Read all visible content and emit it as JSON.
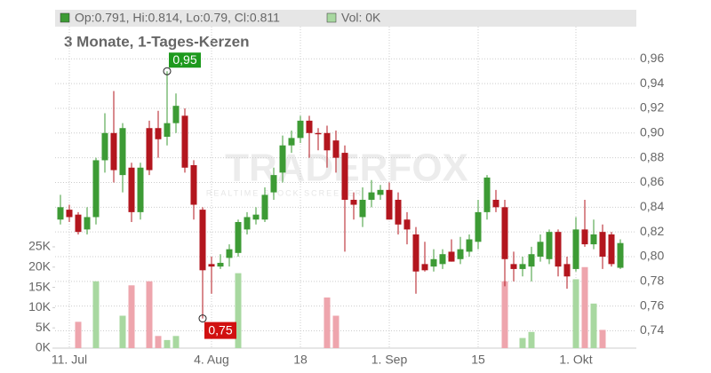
{
  "chart_data": {
    "type": "candlestick",
    "header": "Op:0.791, Hi:0.814, Lo:0.79, Cl:0.811",
    "volume_header": "Vol: 0K",
    "subtitle": "3 Monate, 1-Tages-Kerzen",
    "watermark": "TRADERFOX",
    "watermark_sub": "REALTIME STOCK SCREENER",
    "annotations": [
      "0,95",
      "0,75"
    ],
    "up_color": "#3d9b35",
    "down_color": "#b3161e",
    "volume_up_color": "#a8d8a0",
    "volume_down_color": "#eea5ad",
    "grid": true,
    "categories": [
      null,
      "11. Jul",
      null,
      null,
      null,
      null,
      null,
      null,
      null,
      null,
      null,
      null,
      null,
      null,
      null,
      null,
      null,
      "4. Aug",
      null,
      null,
      null,
      null,
      null,
      null,
      null,
      null,
      null,
      "18",
      null,
      null,
      null,
      null,
      null,
      null,
      null,
      null,
      null,
      "1. Sep",
      null,
      null,
      null,
      null,
      null,
      null,
      null,
      null,
      null,
      "15",
      null,
      null,
      null,
      null,
      null,
      null,
      null,
      null,
      null,
      null,
      "1. Okt",
      null,
      null,
      null,
      null,
      null
    ],
    "open": [
      0.83,
      0.838,
      0.834,
      0.822,
      0.832,
      0.878,
      0.9,
      0.866,
      0.872,
      0.836,
      0.904,
      0.904,
      0.897,
      0.908,
      0.914,
      0.874,
      0.838,
      0.794,
      0.792,
      0.799,
      0.803,
      0.822,
      0.83,
      0.83,
      0.852,
      0.868,
      0.89,
      0.896,
      0.91,
      0.9,
      0.9,
      0.894,
      0.884,
      0.846,
      0.832,
      0.846,
      0.85,
      0.854,
      0.846,
      0.83,
      0.818,
      0.794,
      0.792,
      0.794,
      0.804,
      0.798,
      0.804,
      0.812,
      0.836,
      0.846,
      0.84,
      0.794,
      0.79,
      0.792,
      0.8,
      0.798,
      0.82,
      0.794,
      0.79,
      0.822,
      0.81,
      0.82,
      0.818,
      0.791
    ],
    "high": [
      0.85,
      0.842,
      0.836,
      0.84,
      0.88,
      0.916,
      0.934,
      0.908,
      0.876,
      0.876,
      0.91,
      0.918,
      0.95,
      0.932,
      0.92,
      0.878,
      0.84,
      0.8,
      0.802,
      0.81,
      0.83,
      0.836,
      0.84,
      0.856,
      0.872,
      0.898,
      0.902,
      0.914,
      0.914,
      0.904,
      0.906,
      0.902,
      0.89,
      0.852,
      0.856,
      0.862,
      0.858,
      0.86,
      0.852,
      0.836,
      0.824,
      0.812,
      0.806,
      0.806,
      0.814,
      0.816,
      0.818,
      0.846,
      0.866,
      0.854,
      0.846,
      0.804,
      0.8,
      0.808,
      0.818,
      0.822,
      0.822,
      0.8,
      0.832,
      0.846,
      0.83,
      0.826,
      0.82,
      0.814
    ],
    "low": [
      0.826,
      0.828,
      0.818,
      0.818,
      0.826,
      0.868,
      0.86,
      0.852,
      0.828,
      0.83,
      0.866,
      0.88,
      0.89,
      0.9,
      0.868,
      0.83,
      0.75,
      0.77,
      0.79,
      0.792,
      0.8,
      0.818,
      0.826,
      0.828,
      0.846,
      0.86,
      0.884,
      0.892,
      0.88,
      0.886,
      0.872,
      0.868,
      0.804,
      0.83,
      0.824,
      0.84,
      0.846,
      0.83,
      0.818,
      0.81,
      0.77,
      0.788,
      0.788,
      0.79,
      0.796,
      0.794,
      0.8,
      0.806,
      0.83,
      0.836,
      0.776,
      0.78,
      0.784,
      0.78,
      0.796,
      0.794,
      0.784,
      0.774,
      0.788,
      0.808,
      0.806,
      0.79,
      0.792,
      0.79
    ],
    "close": [
      0.84,
      0.832,
      0.82,
      0.832,
      0.878,
      0.9,
      0.87,
      0.904,
      0.836,
      0.872,
      0.87,
      0.895,
      0.908,
      0.922,
      0.872,
      0.842,
      0.789,
      0.792,
      0.795,
      0.806,
      0.828,
      0.832,
      0.834,
      0.85,
      0.866,
      0.89,
      0.896,
      0.91,
      0.9,
      0.899,
      0.886,
      0.88,
      0.846,
      0.842,
      0.846,
      0.852,
      0.854,
      0.83,
      0.826,
      0.822,
      0.788,
      0.789,
      0.798,
      0.802,
      0.796,
      0.806,
      0.814,
      0.836,
      0.864,
      0.84,
      0.798,
      0.79,
      0.794,
      0.802,
      0.812,
      0.82,
      0.792,
      0.784,
      0.822,
      0.81,
      0.818,
      0.8,
      0.794,
      0.811
    ],
    "volume": [
      0,
      0,
      6500,
      0,
      16500,
      0,
      0,
      8000,
      15500,
      0,
      16500,
      3000,
      2000,
      3000,
      0,
      0,
      0,
      0,
      0,
      0,
      18500,
      0,
      0,
      0,
      0,
      0,
      0,
      0,
      0,
      0,
      12500,
      8000,
      0,
      0,
      0,
      0,
      0,
      0,
      0,
      0,
      0,
      0,
      0,
      0,
      0,
      0,
      0,
      0,
      0,
      0,
      16500,
      0,
      2500,
      4000,
      0,
      0,
      0,
      0,
      17000,
      20000,
      11000,
      4500,
      0,
      0
    ],
    "ylim": [
      0.726,
      0.999
    ],
    "yticks": [
      {
        "value": 0.74,
        "label": "0,74"
      },
      {
        "value": 0.76,
        "label": "0,76"
      },
      {
        "value": 0.78,
        "label": "0,78"
      },
      {
        "value": 0.8,
        "label": "0,80"
      },
      {
        "value": 0.82,
        "label": "0,82"
      },
      {
        "value": 0.84,
        "label": "0,84"
      },
      {
        "value": 0.86,
        "label": "0,86"
      },
      {
        "value": 0.88,
        "label": "0,88"
      },
      {
        "value": 0.9,
        "label": "0,90"
      },
      {
        "value": 0.92,
        "label": "0,92"
      },
      {
        "value": 0.94,
        "label": "0,94"
      },
      {
        "value": 0.96,
        "label": "0,96"
      }
    ],
    "y2lim": [
      0,
      83300
    ],
    "y2ticks": [
      {
        "value": 0,
        "label": "0K"
      },
      {
        "value": 5000,
        "label": "5K"
      },
      {
        "value": 10000,
        "label": "10K"
      },
      {
        "value": 15000,
        "label": "15K"
      },
      {
        "value": 20000,
        "label": "20K"
      },
      {
        "value": 25000,
        "label": "25K"
      }
    ]
  }
}
